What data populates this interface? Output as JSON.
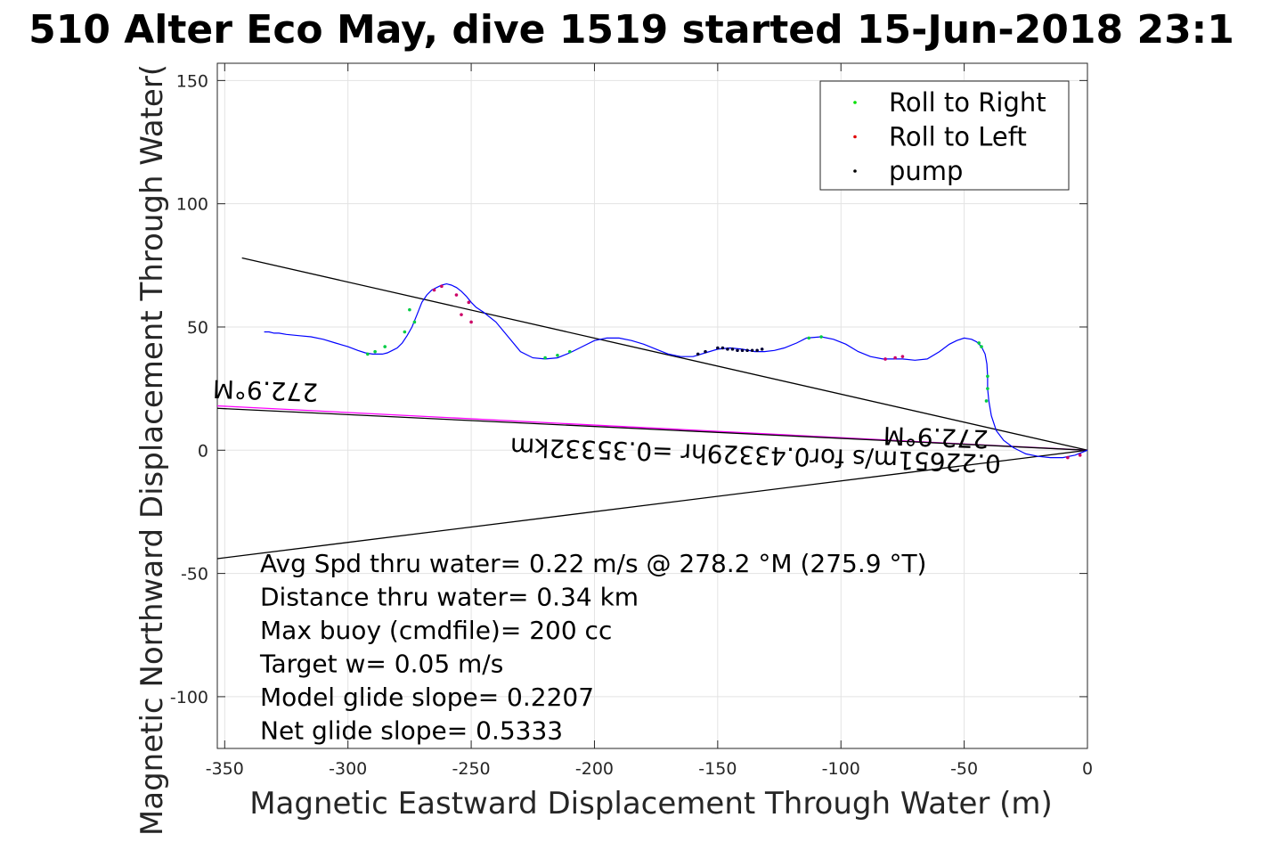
{
  "chart_data": {
    "type": "line",
    "title": "510 Alter Eco May, dive 1519 started 15-Jun-2018 23:1",
    "xlabel": "Magnetic Eastward Displacement Through Water (m)",
    "ylabel": "Magnetic Northward Displacement Through Water(",
    "xlim": [
      -353,
      0
    ],
    "ylim": [
      -121,
      157
    ],
    "xticks": [
      -350,
      -300,
      -250,
      -200,
      -150,
      -100,
      -50,
      0
    ],
    "yticks": [
      -100,
      -50,
      0,
      50,
      100,
      150
    ],
    "grid": true,
    "legend": {
      "placement": "top-right",
      "entries": [
        {
          "label": "Roll to Right",
          "color": "#00e000"
        },
        {
          "label": "Roll to Left",
          "color": "#e00000"
        },
        {
          "label": "pump",
          "color": "#000000"
        }
      ]
    },
    "track": {
      "color": "#0000ff",
      "x": [
        0,
        -5,
        -10,
        -15,
        -20,
        -25,
        -30,
        -34,
        -37,
        -39,
        -40,
        -40.5,
        -40.5,
        -40.8,
        -41.5,
        -43,
        -45,
        -47,
        -50,
        -53,
        -56,
        -60,
        -65,
        -70,
        -75,
        -80,
        -83,
        -88,
        -93,
        -98,
        -103,
        -108,
        -114,
        -118,
        -123,
        -127,
        -131,
        -135,
        -140,
        -145,
        -150,
        -155,
        -160,
        -165,
        -170,
        -175,
        -180,
        -185,
        -190,
        -195,
        -200,
        -205,
        -210,
        -215,
        -220,
        -225,
        -230,
        -235,
        -240,
        -245,
        -248,
        -250,
        -252,
        -254,
        -256,
        -258,
        -260,
        -262,
        -264,
        -266,
        -268,
        -270,
        -272,
        -274,
        -276,
        -278,
        -280,
        -282,
        -284,
        -286,
        -288,
        -290,
        -293,
        -296,
        -300,
        -305,
        -310,
        -315,
        -320,
        -325,
        -328,
        -330,
        -332,
        -334
      ],
      "y": [
        0,
        -2,
        -3,
        -3,
        -2.5,
        -1.5,
        1,
        4,
        8,
        14,
        20,
        25,
        30,
        35,
        39,
        42,
        44,
        45,
        45.5,
        44.5,
        43,
        40,
        37,
        36.5,
        37,
        37,
        37,
        38,
        40,
        43,
        45,
        46,
        45.5,
        43.5,
        41.5,
        40.5,
        40,
        40,
        41,
        41.5,
        41,
        39.5,
        38,
        38,
        39,
        41,
        43,
        44.5,
        45.5,
        45.5,
        44.5,
        42,
        39.5,
        37.5,
        37,
        37.5,
        40,
        46,
        52,
        56,
        58,
        60,
        62.5,
        64.5,
        66,
        67,
        67.5,
        67,
        66,
        65,
        63,
        60,
        55,
        50,
        46.5,
        43.5,
        41.5,
        40.5,
        39.5,
        39,
        39,
        39,
        39.5,
        40.5,
        42,
        43.5,
        45,
        46,
        46.5,
        47,
        47.5,
        47.5,
        48,
        48
      ],
      "roll_right_points": [
        [
          -40.5,
          30
        ],
        [
          -40.5,
          25
        ],
        [
          -41,
          20
        ],
        [
          -43,
          42
        ],
        [
          -44,
          43.5
        ],
        [
          -108,
          46
        ],
        [
          -113,
          45.5
        ],
        [
          -220,
          37.5
        ],
        [
          -215,
          38.5
        ],
        [
          -210,
          40
        ],
        [
          -273,
          52
        ],
        [
          -275,
          57
        ],
        [
          -277,
          48
        ],
        [
          -285,
          42
        ],
        [
          -289,
          40
        ],
        [
          -292,
          39
        ]
      ],
      "roll_left_points": [
        [
          -254,
          55
        ],
        [
          -251,
          60
        ],
        [
          -256,
          63
        ],
        [
          -262,
          66.5
        ],
        [
          -265,
          65
        ],
        [
          -82,
          37
        ],
        [
          -78,
          37.5
        ],
        [
          -75,
          38
        ],
        [
          -8,
          -3
        ],
        [
          -3,
          -2
        ],
        [
          -250,
          52
        ]
      ],
      "pump_points": [
        [
          -150,
          41.5
        ],
        [
          -148,
          41.5
        ],
        [
          -146,
          41
        ],
        [
          -144,
          41
        ],
        [
          -142,
          40.5
        ],
        [
          -140,
          40.5
        ],
        [
          -138,
          40.5
        ],
        [
          -136,
          40.5
        ],
        [
          -134,
          40.5
        ],
        [
          -132,
          41
        ],
        [
          -155,
          40
        ],
        [
          -158,
          39
        ]
      ]
    },
    "lines": [
      {
        "kind": "heading-line",
        "color": "#000000",
        "x": [
          0,
          -343
        ],
        "y": [
          0,
          78
        ]
      },
      {
        "kind": "heading-line",
        "color": "#000000",
        "x": [
          0,
          -353
        ],
        "y": [
          0,
          -44
        ]
      },
      {
        "kind": "mean-line",
        "color": "#ff00ff",
        "x": [
          0,
          -353
        ],
        "y": [
          0,
          18
        ]
      },
      {
        "kind": "mean-line-inner",
        "color": "#000000",
        "x": [
          0,
          -353
        ],
        "y": [
          0,
          17
        ]
      }
    ],
    "rotated_labels": [
      {
        "text": "272.9°M",
        "x": -312,
        "y": 27
      },
      {
        "text": "272.9°M",
        "x": -40,
        "y": 8
      },
      {
        "text": "0.22651m/s for0.43329hr =0.35332km",
        "x": -35,
        "y": -2
      }
    ],
    "annotations": [
      "Avg Spd thru water=  0.22 m/s @ 278.2 °M (275.9 °T)",
      "Distance thru water=  0.34 km",
      "Max buoy (cmdfile)= 200 cc",
      "Target w= 0.05 m/s",
      "Model glide slope= 0.2207",
      "Net glide slope= 0.5333"
    ]
  }
}
